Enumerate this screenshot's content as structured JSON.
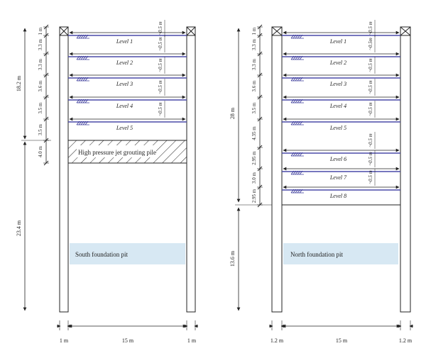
{
  "south": {
    "caption": "South foundation pit",
    "total_top": "18.2 m",
    "total_bottom": "23.4 m",
    "segments": [
      "1 m",
      "3.3 m",
      "3.3 m",
      "3.6 m",
      "3.5 m",
      "3.5 m",
      "4.0 m"
    ],
    "levels": [
      "Level 1",
      "Level 2",
      "Level 3",
      "Level 4",
      "Level 5"
    ],
    "offset_label": "~0.5 m",
    "grout_label": "High pressure jet grouting pile",
    "wall_width": "1 m",
    "pit_width": "15 m",
    "wall_width_right": "1 m"
  },
  "north": {
    "caption": "North foundation pit",
    "total_top": "28 m",
    "total_bottom": "13.6 m",
    "segments": [
      "1 m",
      "3.3 m",
      "3.3 m",
      "3.6 m",
      "3.5 m",
      "4.35 m",
      "2.95 m",
      "3.0 m",
      "2.95 m"
    ],
    "levels": [
      "Level 1",
      "Level 2",
      "Level 3",
      "Level 4",
      "Level 5",
      "Level 6",
      "Level 7",
      "Level 8"
    ],
    "offset_label": "~0.5 m",
    "offset_label_alt": "~0.5m",
    "wall_width": "1.2 m",
    "pit_width": "15 m",
    "wall_width_right": "1.2 m"
  },
  "colors": {
    "strut": "#4a4aa8",
    "pit_fill": "#d7e8f3",
    "line": "#222222",
    "hatch": "#3a3a9a"
  }
}
